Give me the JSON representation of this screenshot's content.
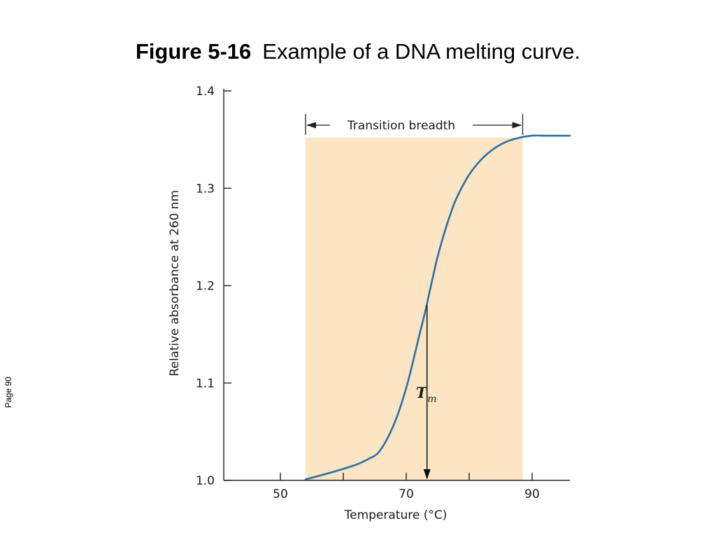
{
  "figure": {
    "label": "Figure 5-16",
    "caption": "Example of a DNA melting curve."
  },
  "page_label": "Page 90",
  "chart_data": {
    "type": "line",
    "xlabel": "Temperature (°C)",
    "ylabel": "Relative absorbance at 260 nm",
    "xlim": [
      41,
      96
    ],
    "ylim": [
      1.0,
      1.4
    ],
    "x_ticks": [
      50,
      70,
      90
    ],
    "x_minor_ticks": [
      60,
      80
    ],
    "y_ticks": [
      1.0,
      1.1,
      1.2,
      1.3,
      1.4
    ],
    "y_tick_labels": [
      "1.0",
      "1.1",
      "1.2",
      "1.3",
      "1.4"
    ],
    "x_tick_labels": [
      "50",
      "70",
      "90"
    ],
    "grid": false,
    "series": [
      {
        "color": "#2a6fa8",
        "x": [
          54,
          58,
          62,
          64,
          65.5,
          67,
          68.5,
          70,
          71,
          72,
          73,
          74,
          75,
          76,
          77,
          78,
          80,
          82,
          84,
          86,
          88,
          90,
          92,
          94,
          96
        ],
        "y": [
          1.001,
          1.008,
          1.016,
          1.022,
          1.028,
          1.043,
          1.065,
          1.095,
          1.12,
          1.147,
          1.173,
          1.202,
          1.23,
          1.253,
          1.273,
          1.29,
          1.314,
          1.33,
          1.341,
          1.348,
          1.352,
          1.354,
          1.354,
          1.354,
          1.354
        ]
      }
    ],
    "shaded_region": {
      "label": "Transition breadth",
      "x_start": 54,
      "x_end": 88.5,
      "y_top": 1.352,
      "color": "#fbe5c2"
    },
    "annotations": {
      "tm_symbol": "T",
      "tm_subscript": "m",
      "tm_x": 73.3,
      "tm_y": 1.18
    }
  }
}
